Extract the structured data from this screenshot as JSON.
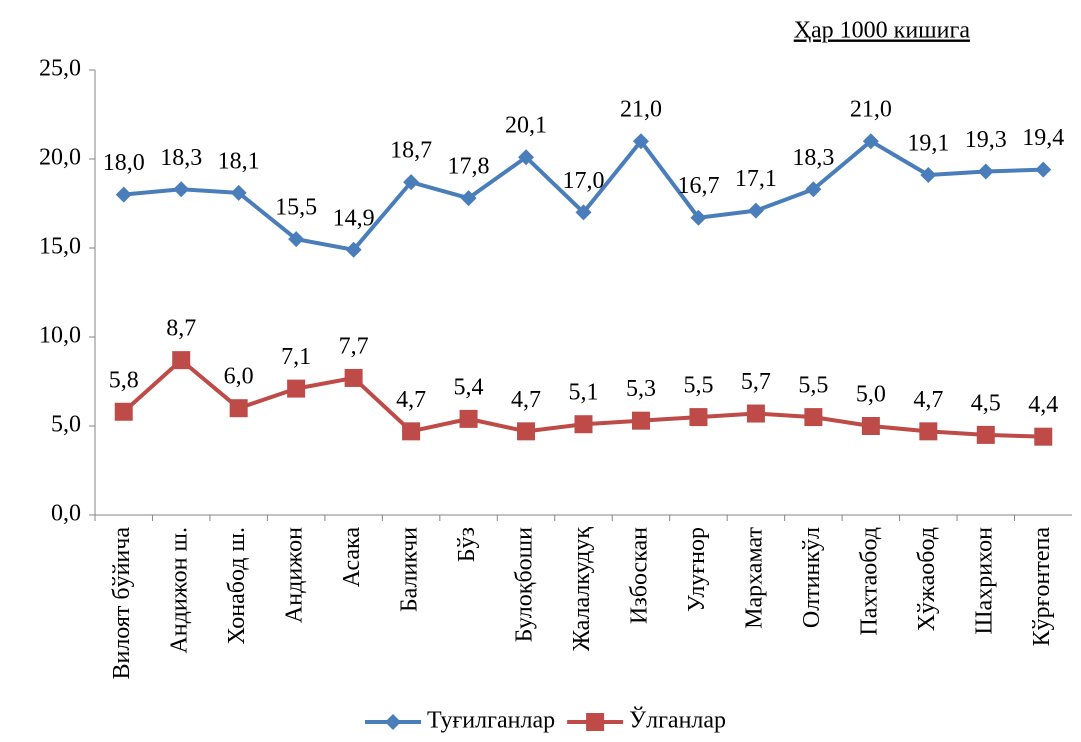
{
  "chart_data": {
    "type": "line",
    "subtitle": "Ҳар 1000 кишига",
    "categories": [
      "Вилоят бўйича",
      "Андижон ш.",
      "Хонабод ш.",
      "Андижон",
      "Асака",
      "Баликчи",
      "Бўз",
      "Булоқбоши",
      "Жалалкудуқ",
      "Избоскан",
      "Улуғнор",
      "Мархамат",
      "Олтинкўл",
      "Пахтаобод",
      "Хўжаобод",
      "Шахрихон",
      "Кўрғонтепа"
    ],
    "series": [
      {
        "name": "Туғилганлар",
        "color": "#4a7ebb",
        "marker": "diamond",
        "values": [
          18.0,
          18.3,
          18.1,
          15.5,
          14.9,
          18.7,
          17.8,
          20.1,
          17.0,
          21.0,
          16.7,
          17.1,
          18.3,
          21.0,
          19.1,
          19.3,
          19.4
        ],
        "value_labels": [
          "18,0",
          "18,3",
          "18,1",
          "15,5",
          "14,9",
          "18,7",
          "17,8",
          "20,1",
          "17,0",
          "21,0",
          "16,7",
          "17,1",
          "18,3",
          "21,0",
          "19,1",
          "19,3",
          "19,4"
        ]
      },
      {
        "name": "Ўлганлар",
        "color": "#be4b48",
        "marker": "square",
        "values": [
          5.8,
          8.7,
          6.0,
          7.1,
          7.7,
          4.7,
          5.4,
          4.7,
          5.1,
          5.3,
          5.5,
          5.7,
          5.5,
          5.0,
          4.7,
          4.5,
          4.4
        ],
        "value_labels": [
          "5,8",
          "8,7",
          "6,0",
          "7,1",
          "7,7",
          "4,7",
          "5,4",
          "4,7",
          "5,1",
          "5,3",
          "5,5",
          "5,7",
          "5,5",
          "5,0",
          "4,7",
          "4,5",
          "4,4"
        ]
      }
    ],
    "ylim": [
      0,
      25
    ],
    "yticks": [
      {
        "value": 0,
        "label": "0,0"
      },
      {
        "value": 5,
        "label": "5,0"
      },
      {
        "value": 10,
        "label": "10,0"
      },
      {
        "value": 15,
        "label": "15,0"
      },
      {
        "value": 20,
        "label": "20,0"
      },
      {
        "value": 25,
        "label": "25,0"
      }
    ],
    "grid": false,
    "legend": "bottom"
  }
}
